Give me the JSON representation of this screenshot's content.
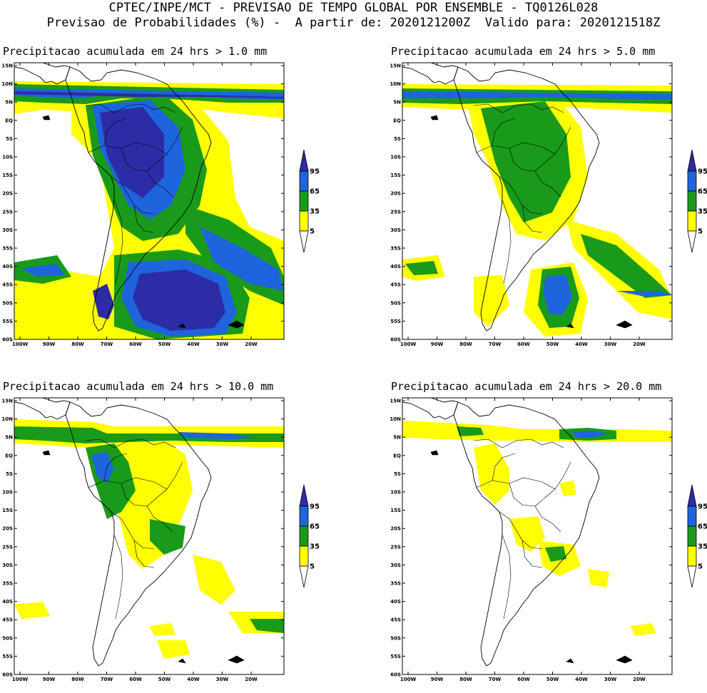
{
  "header": {
    "line1": "CPTEC/INPE/MCT - PREVISAO DE TEMPO GLOBAL POR ENSEMBLE - TQ0126L028",
    "line2": "Previsao de Probabilidades (%) -  A partir de: 2020121200Z  Valido para: 2020121518Z"
  },
  "legend": {
    "levels": [
      "5",
      "35",
      "65",
      "95"
    ],
    "colors": [
      "#ffff00",
      "#1a9a1a",
      "#1e64dc",
      "#2c2ca6"
    ]
  },
  "axes": {
    "lat_labels": [
      "15N",
      "10N",
      "5N",
      "EQ",
      "5S",
      "10S",
      "15S",
      "20S",
      "25S",
      "30S",
      "35S",
      "40S",
      "45S",
      "50S",
      "55S",
      "60S"
    ],
    "lon_labels": [
      "100W",
      "90W",
      "80W",
      "70W",
      "60W",
      "50W",
      "40W",
      "30W",
      "20W"
    ]
  },
  "panels": [
    {
      "title": "Precipitacao acumulada em 24 hrs > 1.0 mm"
    },
    {
      "title": "Precipitacao acumulada em 24 hrs > 5.0 mm"
    },
    {
      "title": "Precipitacao acumulada em 24 hrs > 10.0 mm"
    },
    {
      "title": "Precipitacao acumulada em 24 hrs > 20.0 mm"
    }
  ]
}
